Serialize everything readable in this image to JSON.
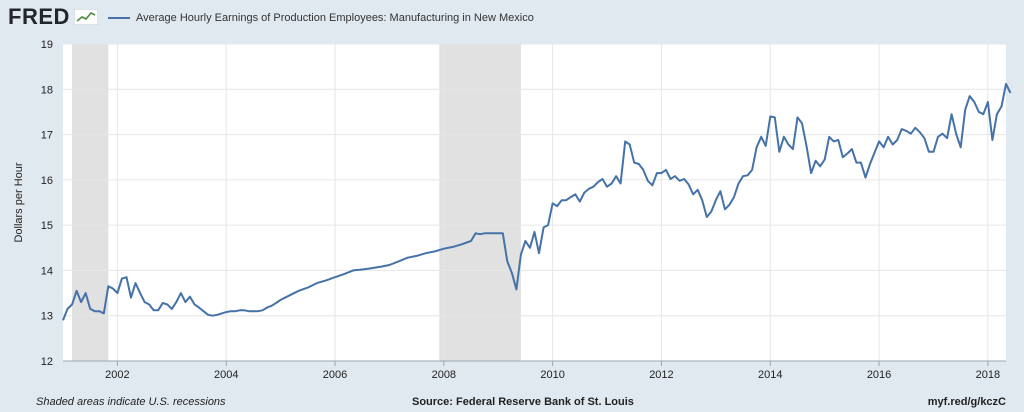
{
  "header": {
    "logo_text": "FRED",
    "logo_icon": "fred-chart-icon"
  },
  "colors": {
    "line": "#4572a7",
    "recession": "#e1e1e1",
    "background": "#e1e9f0",
    "plot_bg": "#ffffff"
  },
  "footer": {
    "note": "Shaded areas indicate U.S. recessions",
    "source": "Source: Federal Reserve Bank of St. Louis",
    "link": "myf.red/g/kczC"
  },
  "chart_data": {
    "type": "line",
    "title": "",
    "xlabel": "",
    "ylabel": "Dollars per Hour",
    "xlim": [
      "2001-01",
      "2018-05"
    ],
    "ylim": [
      12,
      19
    ],
    "yticks": [
      12,
      13,
      14,
      15,
      16,
      17,
      18,
      19
    ],
    "xticks": [
      "2002",
      "2004",
      "2006",
      "2008",
      "2010",
      "2012",
      "2014",
      "2016",
      "2018"
    ],
    "grid": true,
    "legend_position": "top",
    "recessions": [
      {
        "start": "2001-03",
        "end": "2001-11"
      },
      {
        "start": "2007-12",
        "end": "2009-06"
      }
    ],
    "series": [
      {
        "name": "Average Hourly Earnings of Production Employees: Manufacturing in New Mexico",
        "points": [
          [
            "2001-01",
            12.9
          ],
          [
            "2001-02",
            13.15
          ],
          [
            "2001-03",
            13.25
          ],
          [
            "2001-04",
            13.55
          ],
          [
            "2001-05",
            13.3
          ],
          [
            "2001-06",
            13.5
          ],
          [
            "2001-07",
            13.15
          ],
          [
            "2001-08",
            13.1
          ],
          [
            "2001-09",
            13.1
          ],
          [
            "2001-10",
            13.05
          ],
          [
            "2001-11",
            13.65
          ],
          [
            "2001-12",
            13.6
          ],
          [
            "2002-01",
            13.5
          ],
          [
            "2002-02",
            13.82
          ],
          [
            "2002-03",
            13.85
          ],
          [
            "2002-04",
            13.4
          ],
          [
            "2002-05",
            13.72
          ],
          [
            "2002-06",
            13.5
          ],
          [
            "2002-07",
            13.3
          ],
          [
            "2002-08",
            13.25
          ],
          [
            "2002-09",
            13.12
          ],
          [
            "2002-10",
            13.12
          ],
          [
            "2002-11",
            13.28
          ],
          [
            "2002-12",
            13.25
          ],
          [
            "2003-01",
            13.15
          ],
          [
            "2003-02",
            13.3
          ],
          [
            "2003-03",
            13.5
          ],
          [
            "2003-04",
            13.3
          ],
          [
            "2003-05",
            13.42
          ],
          [
            "2003-06",
            13.25
          ],
          [
            "2003-07",
            13.18
          ],
          [
            "2003-08",
            13.1
          ],
          [
            "2003-09",
            13.02
          ],
          [
            "2003-10",
            13.0
          ],
          [
            "2003-11",
            13.02
          ],
          [
            "2003-12",
            13.05
          ],
          [
            "2004-01",
            13.08
          ],
          [
            "2004-02",
            13.1
          ],
          [
            "2004-03",
            13.1
          ],
          [
            "2004-04",
            13.12
          ],
          [
            "2004-05",
            13.12
          ],
          [
            "2004-06",
            13.1
          ],
          [
            "2004-07",
            13.1
          ],
          [
            "2004-08",
            13.1
          ],
          [
            "2004-09",
            13.12
          ],
          [
            "2004-10",
            13.18
          ],
          [
            "2004-11",
            13.22
          ],
          [
            "2004-12",
            13.28
          ],
          [
            "2005-01",
            13.35
          ],
          [
            "2005-03",
            13.45
          ],
          [
            "2005-05",
            13.55
          ],
          [
            "2005-07",
            13.62
          ],
          [
            "2005-09",
            13.72
          ],
          [
            "2005-11",
            13.78
          ],
          [
            "2006-01",
            13.85
          ],
          [
            "2006-03",
            13.92
          ],
          [
            "2006-05",
            14.0
          ],
          [
            "2006-07",
            14.02
          ],
          [
            "2006-09",
            14.05
          ],
          [
            "2006-11",
            14.08
          ],
          [
            "2007-01",
            14.12
          ],
          [
            "2007-03",
            14.2
          ],
          [
            "2007-05",
            14.28
          ],
          [
            "2007-07",
            14.32
          ],
          [
            "2007-09",
            14.38
          ],
          [
            "2007-11",
            14.42
          ],
          [
            "2008-01",
            14.48
          ],
          [
            "2008-03",
            14.52
          ],
          [
            "2008-05",
            14.58
          ],
          [
            "2008-07",
            14.65
          ],
          [
            "2008-08",
            14.82
          ],
          [
            "2008-09",
            14.8
          ],
          [
            "2008-10",
            14.82
          ],
          [
            "2008-11",
            14.82
          ],
          [
            "2008-12",
            14.82
          ],
          [
            "2009-01",
            14.82
          ],
          [
            "2009-02",
            14.82
          ],
          [
            "2009-03",
            14.2
          ],
          [
            "2009-04",
            13.95
          ],
          [
            "2009-05",
            13.58
          ],
          [
            "2009-06",
            14.35
          ],
          [
            "2009-07",
            14.65
          ],
          [
            "2009-08",
            14.5
          ],
          [
            "2009-09",
            14.85
          ],
          [
            "2009-10",
            14.38
          ],
          [
            "2009-11",
            14.95
          ],
          [
            "2009-12",
            15.0
          ],
          [
            "2010-01",
            15.48
          ],
          [
            "2010-02",
            15.42
          ],
          [
            "2010-03",
            15.55
          ],
          [
            "2010-04",
            15.55
          ],
          [
            "2010-05",
            15.62
          ],
          [
            "2010-06",
            15.68
          ],
          [
            "2010-07",
            15.52
          ],
          [
            "2010-08",
            15.72
          ],
          [
            "2010-09",
            15.8
          ],
          [
            "2010-10",
            15.85
          ],
          [
            "2010-11",
            15.95
          ],
          [
            "2010-12",
            16.02
          ],
          [
            "2011-01",
            15.85
          ],
          [
            "2011-02",
            15.92
          ],
          [
            "2011-03",
            16.08
          ],
          [
            "2011-04",
            15.92
          ],
          [
            "2011-05",
            16.85
          ],
          [
            "2011-06",
            16.78
          ],
          [
            "2011-07",
            16.38
          ],
          [
            "2011-08",
            16.35
          ],
          [
            "2011-09",
            16.22
          ],
          [
            "2011-10",
            15.98
          ],
          [
            "2011-11",
            15.88
          ],
          [
            "2011-12",
            16.15
          ],
          [
            "2012-01",
            16.15
          ],
          [
            "2012-02",
            16.22
          ],
          [
            "2012-03",
            16.02
          ],
          [
            "2012-04",
            16.08
          ],
          [
            "2012-05",
            15.98
          ],
          [
            "2012-06",
            16.02
          ],
          [
            "2012-07",
            15.9
          ],
          [
            "2012-08",
            15.68
          ],
          [
            "2012-09",
            15.78
          ],
          [
            "2012-10",
            15.55
          ],
          [
            "2012-11",
            15.18
          ],
          [
            "2012-12",
            15.3
          ],
          [
            "2013-01",
            15.55
          ],
          [
            "2013-02",
            15.75
          ],
          [
            "2013-03",
            15.35
          ],
          [
            "2013-04",
            15.45
          ],
          [
            "2013-05",
            15.62
          ],
          [
            "2013-06",
            15.92
          ],
          [
            "2013-07",
            16.08
          ],
          [
            "2013-08",
            16.1
          ],
          [
            "2013-09",
            16.22
          ],
          [
            "2013-10",
            16.72
          ],
          [
            "2013-11",
            16.95
          ],
          [
            "2013-12",
            16.75
          ],
          [
            "2014-01",
            17.4
          ],
          [
            "2014-02",
            17.38
          ],
          [
            "2014-03",
            16.62
          ],
          [
            "2014-04",
            16.95
          ],
          [
            "2014-05",
            16.78
          ],
          [
            "2014-06",
            16.68
          ],
          [
            "2014-07",
            17.38
          ],
          [
            "2014-08",
            17.25
          ],
          [
            "2014-09",
            16.75
          ],
          [
            "2014-10",
            16.15
          ],
          [
            "2014-11",
            16.42
          ],
          [
            "2014-12",
            16.3
          ],
          [
            "2015-01",
            16.45
          ],
          [
            "2015-02",
            16.95
          ],
          [
            "2015-03",
            16.85
          ],
          [
            "2015-04",
            16.88
          ],
          [
            "2015-05",
            16.5
          ],
          [
            "2015-06",
            16.58
          ],
          [
            "2015-07",
            16.68
          ],
          [
            "2015-08",
            16.38
          ],
          [
            "2015-09",
            16.38
          ],
          [
            "2015-10",
            16.05
          ],
          [
            "2015-11",
            16.35
          ],
          [
            "2015-12",
            16.6
          ],
          [
            "2016-01",
            16.85
          ],
          [
            "2016-02",
            16.72
          ],
          [
            "2016-03",
            16.95
          ],
          [
            "2016-04",
            16.78
          ],
          [
            "2016-05",
            16.88
          ],
          [
            "2016-06",
            17.12
          ],
          [
            "2016-07",
            17.08
          ],
          [
            "2016-08",
            17.02
          ],
          [
            "2016-09",
            17.15
          ],
          [
            "2016-10",
            17.05
          ],
          [
            "2016-11",
            16.92
          ],
          [
            "2016-12",
            16.62
          ],
          [
            "2017-01",
            16.62
          ],
          [
            "2017-02",
            16.95
          ],
          [
            "2017-03",
            17.02
          ],
          [
            "2017-04",
            16.92
          ],
          [
            "2017-05",
            17.45
          ],
          [
            "2017-06",
            17.02
          ],
          [
            "2017-07",
            16.72
          ],
          [
            "2017-08",
            17.55
          ],
          [
            "2017-09",
            17.85
          ],
          [
            "2017-10",
            17.72
          ],
          [
            "2017-11",
            17.5
          ],
          [
            "2017-12",
            17.45
          ],
          [
            "2018-01",
            17.72
          ],
          [
            "2018-02",
            16.88
          ],
          [
            "2018-03",
            17.45
          ],
          [
            "2018-04",
            17.62
          ],
          [
            "2018-05",
            18.12
          ],
          [
            "2018-06",
            17.92
          ]
        ]
      }
    ]
  }
}
